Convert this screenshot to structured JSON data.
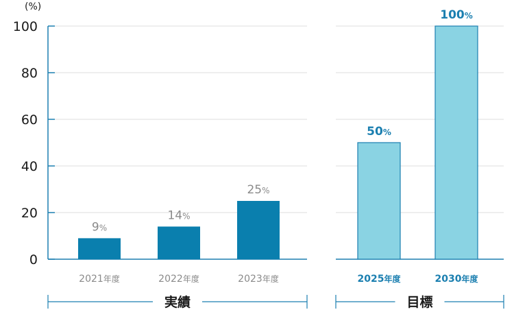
{
  "chart_data": {
    "type": "bar",
    "unit_label": "(%)",
    "yticks": [
      "100",
      "80",
      "60",
      "40",
      "20",
      "0"
    ],
    "ylim": [
      0,
      100
    ],
    "grid": true,
    "groups": [
      {
        "label": "実績",
        "kind": "actual",
        "bar_color": "#0a7fae",
        "bars": [
          {
            "category": "2021",
            "category_suffix": "年度",
            "value": 9,
            "value_label": "9",
            "value_suffix": "%"
          },
          {
            "category": "2022",
            "category_suffix": "年度",
            "value": 14,
            "value_label": "14",
            "value_suffix": "%"
          },
          {
            "category": "2023",
            "category_suffix": "年度",
            "value": 25,
            "value_label": "25",
            "value_suffix": "%"
          }
        ]
      },
      {
        "label": "目標",
        "kind": "target",
        "bar_color": "#8ad3e3",
        "bar_stroke": "#1b7fb0",
        "bars": [
          {
            "category": "2025",
            "category_suffix": "年度",
            "value": 50,
            "value_label": "50",
            "value_suffix": "%"
          },
          {
            "category": "2030",
            "category_suffix": "年度",
            "value": 100,
            "value_label": "100",
            "value_suffix": "%"
          }
        ]
      }
    ]
  }
}
